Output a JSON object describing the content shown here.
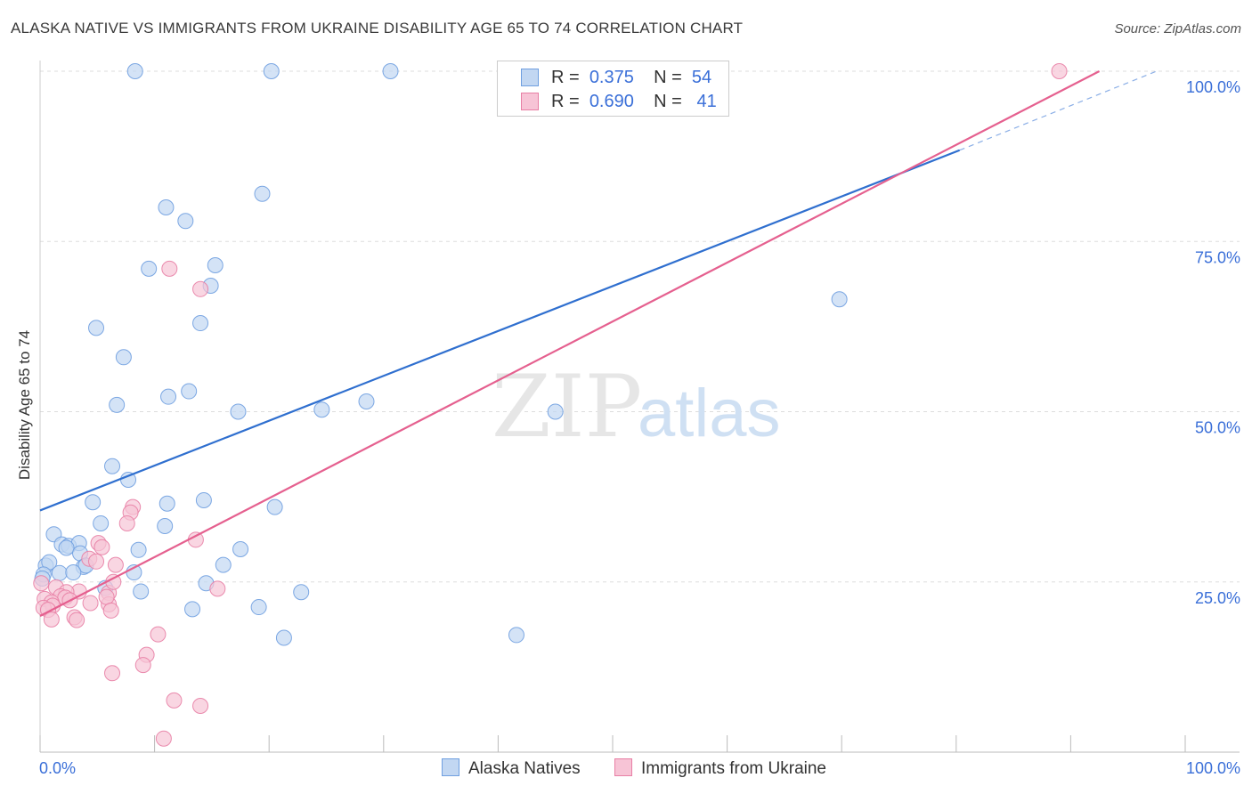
{
  "title": "ALASKA NATIVE VS IMMIGRANTS FROM UKRAINE DISABILITY AGE 65 TO 74 CORRELATION CHART",
  "source": "Source: ZipAtlas.com",
  "watermark": {
    "zip": "ZIP",
    "atlas": "atlas"
  },
  "legend": {
    "r_label": "R =",
    "n_label": "N =",
    "rows": [
      {
        "r": "0.375",
        "n": "54"
      },
      {
        "r": "0.690",
        "n": "41"
      }
    ]
  },
  "chart_data": {
    "type": "scatter",
    "title": "ALASKA NATIVE VS IMMIGRANTS FROM UKRAINE DISABILITY AGE 65 TO 74 CORRELATION CHART",
    "xlabel": "",
    "ylabel": "Disability Age 65 to 74",
    "xlim": [
      0,
      100
    ],
    "ylim": [
      0,
      100
    ],
    "x_tick_labels": [
      "0.0%",
      "100.0%"
    ],
    "y_tick_labels": [
      "25.0%",
      "50.0%",
      "75.0%",
      "100.0%"
    ],
    "y_ticks": [
      25,
      50,
      75,
      100
    ],
    "grid": true,
    "legend_position": "top-center",
    "series": [
      {
        "name": "Alaska Natives",
        "color": "#6f9fe0",
        "fill": "#c2d7f2",
        "r": "0.375",
        "n": "54",
        "trend": {
          "x0": 0,
          "y0": 35.5,
          "x1": 80.3,
          "y1": 88.4,
          "dashed_to_x": 97.5,
          "dashed_to_y": 100
        },
        "points": [
          [
            8.3,
            100
          ],
          [
            20.2,
            100
          ],
          [
            30.6,
            100
          ],
          [
            8.6,
            29.7
          ],
          [
            19.4,
            82
          ],
          [
            11,
            80
          ],
          [
            12.7,
            78
          ],
          [
            9.5,
            71
          ],
          [
            15.3,
            71.5
          ],
          [
            14.9,
            68.5
          ],
          [
            14,
            63
          ],
          [
            4.9,
            62.3
          ],
          [
            7.3,
            58
          ],
          [
            11.2,
            52.2
          ],
          [
            13,
            53
          ],
          [
            6.7,
            51
          ],
          [
            17.3,
            50
          ],
          [
            24.6,
            50.3
          ],
          [
            28.5,
            51.5
          ],
          [
            45,
            50
          ],
          [
            6.3,
            42
          ],
          [
            7.7,
            40
          ],
          [
            4.6,
            36.7
          ],
          [
            11.1,
            36.5
          ],
          [
            14.3,
            37
          ],
          [
            20.5,
            36
          ],
          [
            5.3,
            33.6
          ],
          [
            10.9,
            33.2
          ],
          [
            1.2,
            32
          ],
          [
            1.9,
            30.5
          ],
          [
            2.5,
            30.3
          ],
          [
            3.4,
            30.7
          ],
          [
            2.3,
            30
          ],
          [
            3.5,
            29.2
          ],
          [
            17.5,
            29.8
          ],
          [
            0.5,
            27.4
          ],
          [
            0.8,
            27.9
          ],
          [
            3.8,
            27.2
          ],
          [
            4,
            27.4
          ],
          [
            8.2,
            26.4
          ],
          [
            1.7,
            26.3
          ],
          [
            2.9,
            26.4
          ],
          [
            0.3,
            26.1
          ],
          [
            16,
            27.5
          ],
          [
            14.5,
            24.8
          ],
          [
            5.7,
            24.1
          ],
          [
            8.8,
            23.6
          ],
          [
            13.3,
            21
          ],
          [
            19.1,
            21.3
          ],
          [
            22.8,
            23.5
          ],
          [
            21.3,
            16.8
          ],
          [
            41.6,
            17.2
          ],
          [
            69.8,
            66.5
          ],
          [
            0.2,
            25.5
          ]
        ]
      },
      {
        "name": "Immigrants from Ukraine",
        "color": "#e87fa5",
        "fill": "#f7c4d6",
        "r": "0.690",
        "n": "41",
        "trend": {
          "x0": 0,
          "y0": 20,
          "x1": 92.5,
          "y1": 100
        },
        "points": [
          [
            89,
            100
          ],
          [
            11.3,
            71
          ],
          [
            14,
            68
          ],
          [
            8.1,
            36
          ],
          [
            7.9,
            35.2
          ],
          [
            7.6,
            33.6
          ],
          [
            13.6,
            31.2
          ],
          [
            5.1,
            30.7
          ],
          [
            5.4,
            30.1
          ],
          [
            4.3,
            28.4
          ],
          [
            4.9,
            28
          ],
          [
            6.6,
            27.5
          ],
          [
            1.4,
            24.2
          ],
          [
            3.4,
            23.6
          ],
          [
            2.3,
            23.5
          ],
          [
            6,
            23.4
          ],
          [
            1.8,
            22.9
          ],
          [
            2.2,
            22.7
          ],
          [
            0.4,
            22.5
          ],
          [
            1,
            22
          ],
          [
            2.6,
            22.3
          ],
          [
            4.4,
            21.9
          ],
          [
            6,
            21.7
          ],
          [
            5.8,
            22.8
          ],
          [
            1.1,
            21.5
          ],
          [
            0.3,
            21.2
          ],
          [
            0.7,
            20.9
          ],
          [
            6.2,
            20.8
          ],
          [
            3,
            19.8
          ],
          [
            1,
            19.5
          ],
          [
            3.2,
            19.4
          ],
          [
            15.5,
            24
          ],
          [
            6.4,
            25
          ],
          [
            10.3,
            17.3
          ],
          [
            9.3,
            14.3
          ],
          [
            9,
            12.8
          ],
          [
            6.3,
            11.6
          ],
          [
            11.7,
            7.6
          ],
          [
            14,
            6.8
          ],
          [
            10.8,
            2
          ],
          [
            0.1,
            24.8
          ]
        ]
      }
    ]
  }
}
